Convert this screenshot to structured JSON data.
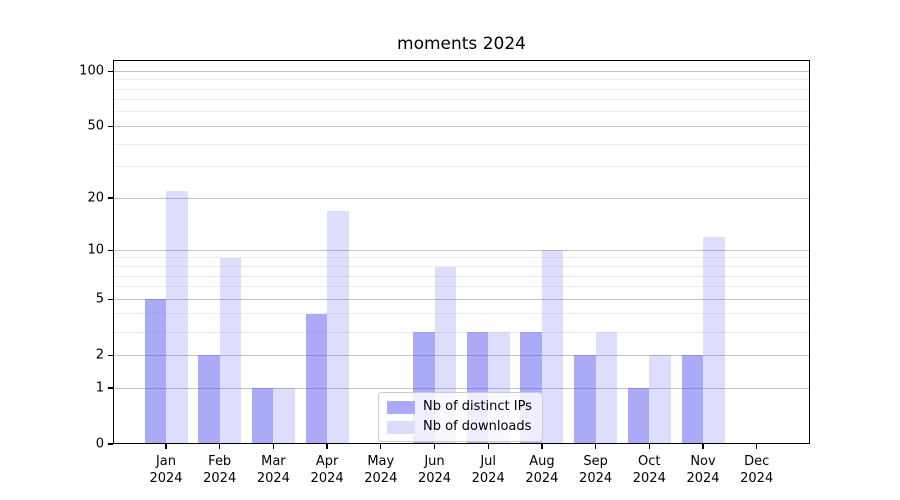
{
  "title": "moments 2024",
  "chart_data": {
    "type": "bar",
    "title": "moments 2024",
    "categories": [
      "Jan 2024",
      "Feb 2024",
      "Mar 2024",
      "Apr 2024",
      "May 2024",
      "Jun 2024",
      "Jul 2024",
      "Aug 2024",
      "Sep 2024",
      "Oct 2024",
      "Nov 2024",
      "Dec 2024"
    ],
    "category_months": [
      "Jan",
      "Feb",
      "Mar",
      "Apr",
      "May",
      "Jun",
      "Jul",
      "Aug",
      "Sep",
      "Oct",
      "Nov",
      "Dec"
    ],
    "category_year": "2024",
    "series": [
      {
        "name": "Nb of distinct IPs",
        "values": [
          5,
          2,
          1,
          4,
          0,
          3,
          3,
          3,
          2,
          1,
          2,
          0
        ],
        "color": "#5555f0",
        "opacity": 0.5
      },
      {
        "name": "Nb of downloads",
        "values": [
          22,
          9,
          1,
          17,
          0,
          8,
          3,
          10,
          3,
          2,
          12,
          0
        ],
        "color": "#5555f0",
        "opacity": 0.2
      }
    ],
    "xlabel": "",
    "ylabel": "",
    "yscale": "log1p",
    "ylim": [
      0,
      115
    ],
    "y_major_ticks": [
      0,
      1,
      2,
      5,
      10,
      20,
      50,
      100
    ],
    "y_minor_gridlines": [
      3,
      4,
      6,
      7,
      8,
      9,
      30,
      40,
      60,
      70,
      80,
      90
    ],
    "grid": true,
    "legend_position": "lower center"
  },
  "colors": {
    "bar_base": "#5555f0",
    "bar_ips_blended": "#aaaaf7",
    "bar_downloads_blended": "#ddddfb",
    "grid_major": "#c3c3c3",
    "grid_minor": "#ededed",
    "spine": "#000000",
    "background": "#ffffff"
  }
}
